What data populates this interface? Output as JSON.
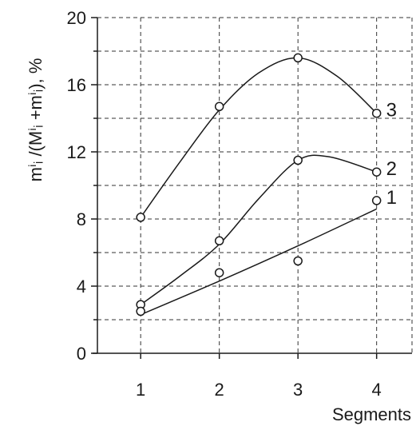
{
  "chart_data": {
    "type": "line",
    "title": "",
    "xlabel": "Segments",
    "ylabel": "mⁱᵢ /(Mⁱᵢ +mⁱᵢ), %",
    "ylim": [
      0,
      20
    ],
    "y_ticks": [
      "0",
      "4",
      "8",
      "12",
      "16",
      "20"
    ],
    "categories": [
      "1",
      "2",
      "3",
      "4"
    ],
    "grid": true,
    "series": [
      {
        "name": "3",
        "points": [
          8.1,
          14.7,
          17.6,
          14.3
        ],
        "curve": [
          [
            1,
            8.1
          ],
          [
            1.5,
            11.4
          ],
          [
            2,
            14.5
          ],
          [
            2.5,
            16.7
          ],
          [
            3,
            17.6
          ],
          [
            3.5,
            16.5
          ],
          [
            4,
            14.3
          ]
        ]
      },
      {
        "name": "2",
        "points": [
          2.9,
          6.7,
          11.5,
          10.8
        ],
        "curve": [
          [
            1,
            2.9
          ],
          [
            1.5,
            4.6
          ],
          [
            2,
            6.5
          ],
          [
            2.5,
            9.2
          ],
          [
            3,
            11.5
          ],
          [
            3.4,
            11.7
          ],
          [
            4,
            10.8
          ]
        ]
      },
      {
        "name": "1",
        "points": [
          2.5,
          4.8,
          5.5,
          9.1
        ],
        "curve": [
          [
            1,
            2.3
          ],
          [
            2,
            4.3
          ],
          [
            3,
            6.4
          ],
          [
            4,
            8.6
          ]
        ]
      }
    ]
  }
}
